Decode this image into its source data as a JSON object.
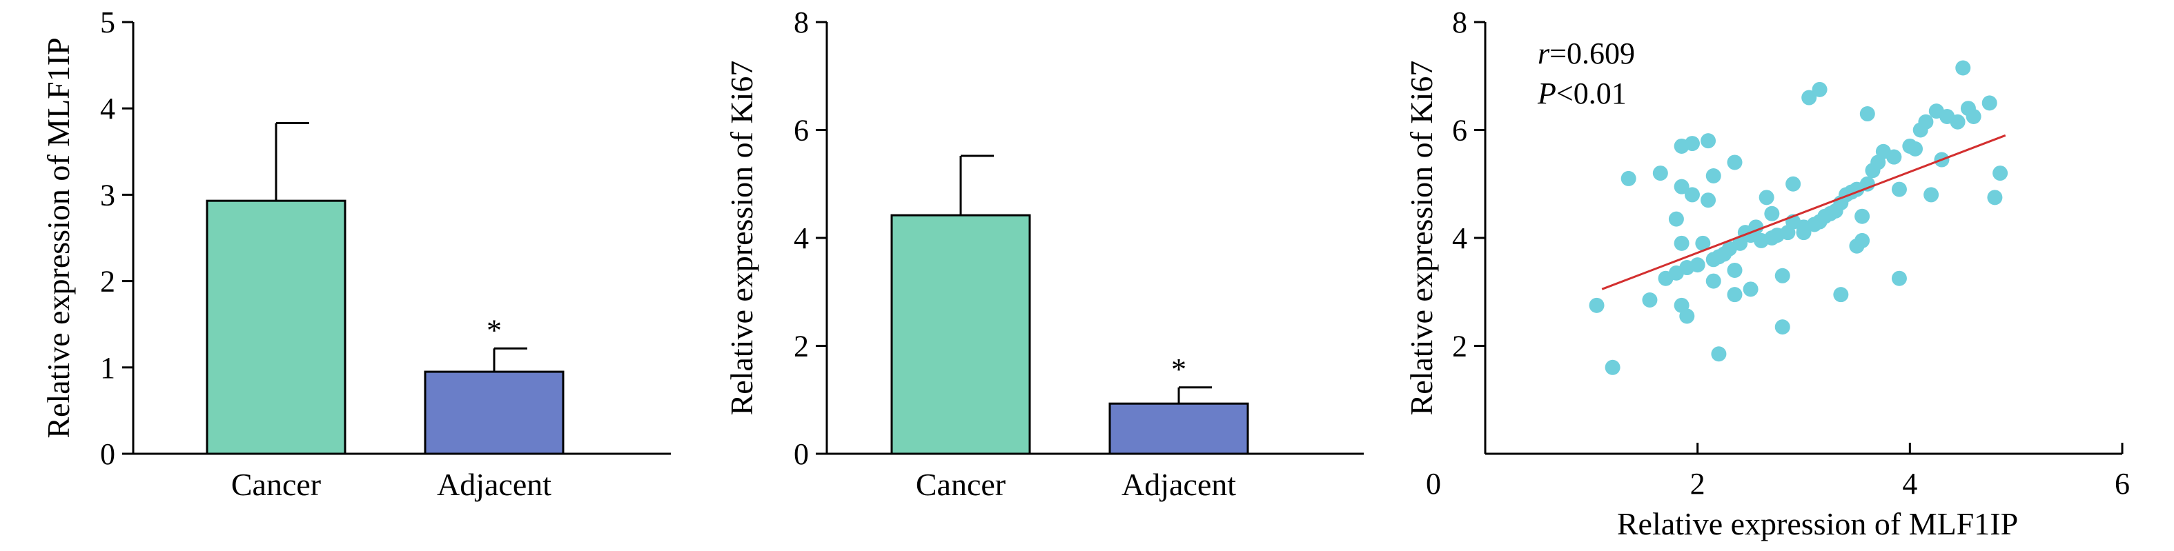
{
  "chart_data": [
    {
      "type": "bar",
      "categories": [
        "Cancer",
        "Adjacent"
      ],
      "values": [
        2.93,
        0.95
      ],
      "errors": [
        0.9,
        0.27
      ],
      "significance": [
        "",
        "*"
      ],
      "ylabel": "Relative expression of MLF1IP",
      "ylim": [
        0,
        5
      ],
      "yticks": [
        "0",
        "1",
        "2",
        "3",
        "4",
        "5"
      ],
      "colors": [
        "#79d2b6",
        "#6a7ec8"
      ]
    },
    {
      "type": "bar",
      "categories": [
        "Cancer",
        "Adjacent"
      ],
      "values": [
        4.42,
        0.93
      ],
      "errors": [
        1.1,
        0.3
      ],
      "significance": [
        "",
        "*"
      ],
      "ylabel": "Relative expression of Ki67",
      "ylim": [
        0,
        8
      ],
      "yticks": [
        "0",
        "2",
        "4",
        "6",
        "8"
      ],
      "colors": [
        "#79d2b6",
        "#6a7ec8"
      ]
    },
    {
      "type": "scatter",
      "xlabel": "Relative expression of MLF1IP",
      "ylabel": "Relative expression of Ki67",
      "xlim": [
        0,
        6
      ],
      "ylim": [
        0,
        8
      ],
      "xticks": [
        "0",
        "2",
        "4",
        "6"
      ],
      "yticks": [
        "2",
        "4",
        "6",
        "8"
      ],
      "annotations": {
        "r_symbol": "r",
        "r_value": "=0.609",
        "p_symbol": "P",
        "p_value": "<0.01"
      },
      "point_color": "#6fcfdc",
      "line_color": "#d32f2f",
      "regression": {
        "x": [
          1.1,
          4.9
        ],
        "y": [
          3.05,
          5.9
        ]
      },
      "points": [
        [
          1.05,
          2.75
        ],
        [
          1.2,
          1.6
        ],
        [
          1.35,
          5.1
        ],
        [
          1.55,
          2.85
        ],
        [
          1.65,
          5.2
        ],
        [
          1.7,
          3.25
        ],
        [
          1.8,
          3.35
        ],
        [
          1.8,
          4.35
        ],
        [
          1.85,
          5.7
        ],
        [
          1.85,
          4.95
        ],
        [
          1.85,
          3.9
        ],
        [
          1.85,
          2.75
        ],
        [
          1.9,
          3.45
        ],
        [
          1.9,
          2.55
        ],
        [
          1.95,
          5.75
        ],
        [
          1.95,
          4.8
        ],
        [
          2.0,
          3.5
        ],
        [
          2.05,
          3.9
        ],
        [
          2.1,
          4.7
        ],
        [
          2.1,
          5.8
        ],
        [
          2.15,
          5.15
        ],
        [
          2.15,
          3.6
        ],
        [
          2.15,
          3.2
        ],
        [
          2.2,
          1.85
        ],
        [
          2.2,
          3.65
        ],
        [
          2.25,
          3.7
        ],
        [
          2.3,
          3.8
        ],
        [
          2.35,
          2.95
        ],
        [
          2.35,
          5.4
        ],
        [
          2.35,
          3.4
        ],
        [
          2.4,
          3.9
        ],
        [
          2.45,
          4.1
        ],
        [
          2.5,
          3.05
        ],
        [
          2.5,
          4.05
        ],
        [
          2.55,
          4.2
        ],
        [
          2.6,
          3.95
        ],
        [
          2.65,
          4.75
        ],
        [
          2.7,
          4.45
        ],
        [
          2.7,
          4.0
        ],
        [
          2.75,
          4.05
        ],
        [
          2.8,
          3.3
        ],
        [
          2.8,
          2.35
        ],
        [
          2.85,
          4.1
        ],
        [
          2.9,
          5.0
        ],
        [
          2.9,
          4.3
        ],
        [
          3.0,
          4.1
        ],
        [
          3.0,
          4.2
        ],
        [
          3.05,
          6.6
        ],
        [
          3.1,
          4.25
        ],
        [
          3.15,
          4.3
        ],
        [
          3.15,
          6.75
        ],
        [
          3.2,
          4.4
        ],
        [
          3.25,
          4.45
        ],
        [
          3.3,
          4.5
        ],
        [
          3.35,
          4.65
        ],
        [
          3.35,
          2.95
        ],
        [
          3.4,
          4.8
        ],
        [
          3.45,
          4.85
        ],
        [
          3.5,
          4.9
        ],
        [
          3.5,
          3.85
        ],
        [
          3.55,
          4.4
        ],
        [
          3.55,
          3.95
        ],
        [
          3.6,
          5.0
        ],
        [
          3.6,
          6.3
        ],
        [
          3.65,
          5.25
        ],
        [
          3.7,
          5.4
        ],
        [
          3.75,
          5.6
        ],
        [
          3.85,
          5.5
        ],
        [
          3.85,
          5.5
        ],
        [
          3.9,
          4.9
        ],
        [
          3.9,
          3.25
        ],
        [
          4.0,
          5.7
        ],
        [
          4.05,
          5.65
        ],
        [
          4.1,
          6.0
        ],
        [
          4.15,
          6.15
        ],
        [
          4.2,
          4.8
        ],
        [
          4.25,
          6.35
        ],
        [
          4.3,
          5.45
        ],
        [
          4.35,
          6.25
        ],
        [
          4.45,
          6.15
        ],
        [
          4.5,
          7.15
        ],
        [
          4.55,
          6.4
        ],
        [
          4.6,
          6.25
        ],
        [
          4.75,
          6.5
        ],
        [
          4.8,
          4.75
        ],
        [
          4.85,
          5.2
        ]
      ]
    }
  ]
}
